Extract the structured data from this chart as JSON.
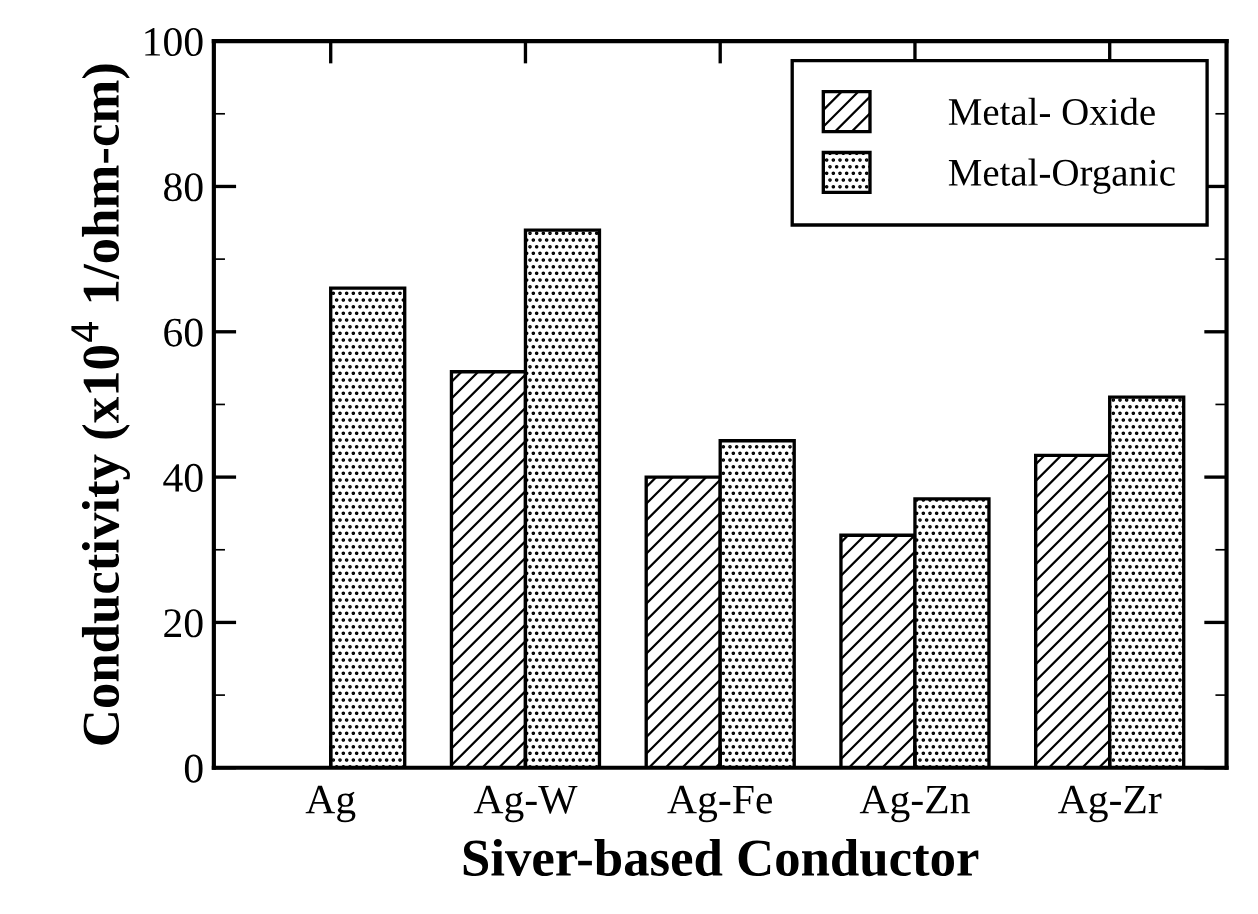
{
  "chart_data": {
    "type": "bar",
    "xlabel": "Siver-based Conductor",
    "ylabel": "Conductivity (x10$^{4}$ 1/ohm-cm)",
    "categories": [
      "Ag",
      "Ag-W",
      "Ag-Fe",
      "Ag-Zn",
      "Ag-Zr"
    ],
    "series": [
      {
        "name": "Metal- Oxide",
        "color": "#000000",
        "values": [
          null,
          54.5,
          40,
          32,
          43
        ]
      },
      {
        "name": "Metal-Organic",
        "color": "#000000",
        "values": [
          66,
          74,
          45,
          37,
          51
        ]
      }
    ],
    "ylim": [
      0,
      100
    ],
    "yticks": [
      0,
      20,
      40,
      60,
      80,
      100
    ],
    "grid": false,
    "legend": "top right"
  }
}
